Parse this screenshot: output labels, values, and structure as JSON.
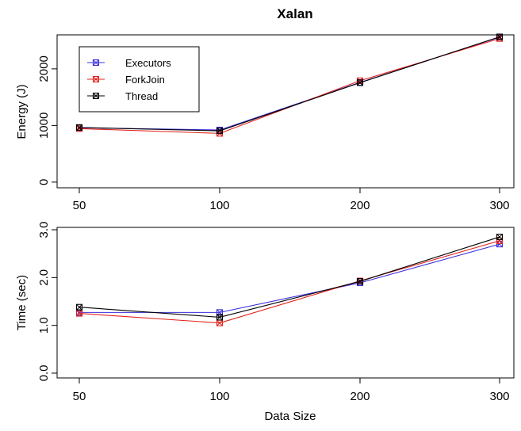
{
  "chart_data": {
    "title": "Xalan",
    "colors": {
      "Executors": "#3b2fd9",
      "ForkJoin": "#e3211c",
      "Thread": "#000000"
    },
    "legend": {
      "placement": "top-left",
      "entries": [
        "Executors",
        "ForkJoin",
        "Thread"
      ]
    },
    "panels": [
      {
        "type": "line",
        "ylabel": "Energy (J)",
        "xlabel": "",
        "categories": [
          "50",
          "100",
          "200",
          "300"
        ],
        "ylim": [
          -100,
          2600
        ],
        "yticks": [
          "0",
          "1000",
          "2000"
        ],
        "series": [
          {
            "name": "Executors",
            "values": [
              960,
              920,
              1760,
              2560
            ]
          },
          {
            "name": "ForkJoin",
            "values": [
              945,
              860,
              1790,
              2535
            ]
          },
          {
            "name": "Thread",
            "values": [
              965,
              905,
              1755,
              2565
            ]
          }
        ]
      },
      {
        "type": "line",
        "ylabel": "Time (sec)",
        "xlabel": "Data Size",
        "categories": [
          "50",
          "100",
          "200",
          "300"
        ],
        "ylim": [
          -0.1,
          3.05
        ],
        "yticks": [
          "0.0",
          "1.0",
          "2.0",
          "3.0"
        ],
        "series": [
          {
            "name": "Executors",
            "values": [
              1.27,
              1.27,
              1.89,
              2.7
            ]
          },
          {
            "name": "ForkJoin",
            "values": [
              1.25,
              1.05,
              1.93,
              2.77
            ]
          },
          {
            "name": "Thread",
            "values": [
              1.38,
              1.17,
              1.92,
              2.85
            ]
          }
        ]
      }
    ]
  }
}
